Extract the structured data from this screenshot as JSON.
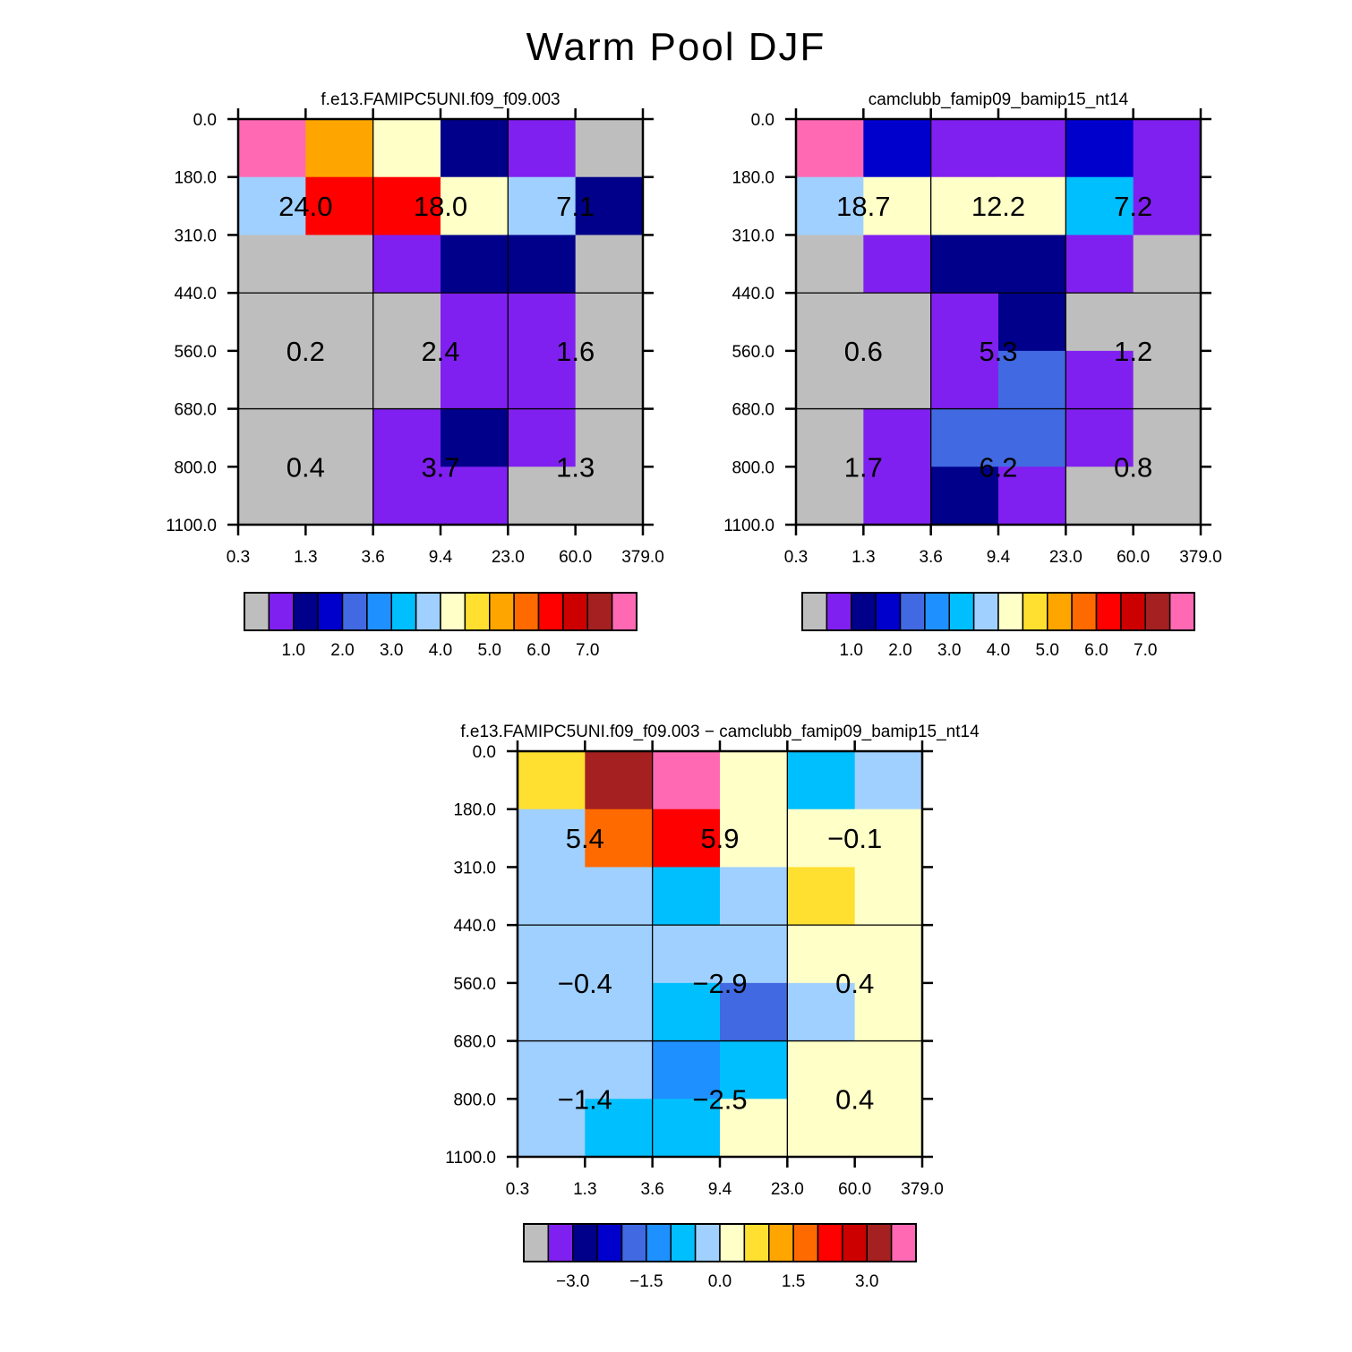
{
  "title": "Warm Pool DJF",
  "palette": {
    "gray": "#bebebe",
    "purple": "#8020f0",
    "navy": "#00008b",
    "mediumblue": "#0000cd",
    "royalblue": "#4169e1",
    "dodgerblue": "#1e90ff",
    "deepskyblue": "#00bfff",
    "lightskyblue": "#a0d0ff",
    "lightyellow": "#ffffc8",
    "gold": "#ffe030",
    "orange": "#ffa500",
    "darkorange": "#ff6a00",
    "red": "#ff0000",
    "darkred": "#cd0000",
    "brown": "#a52020",
    "pink": "#ff69b4"
  },
  "chart_data": [
    {
      "type": "heatmap",
      "title": "f.e13.FAMIPC5UNI.f09_f09.003",
      "x_tick_labels": [
        "0.3",
        "1.3",
        "3.6",
        "9.4",
        "23.0",
        "60.0",
        "379.0"
      ],
      "y_tick_labels": [
        "0.0",
        "180.0",
        "310.0",
        "440.0",
        "560.0",
        "680.0",
        "800.0",
        "1100.0"
      ],
      "cells": [
        [
          "pink",
          "orange",
          "lightyellow",
          "navy",
          "purple",
          "gray"
        ],
        [
          "lightskyblue",
          "red",
          "red",
          "lightyellow",
          "lightskyblue",
          "navy"
        ],
        [
          "gray",
          "gray",
          "purple",
          "navy",
          "navy",
          "gray"
        ],
        [
          "gray",
          "gray",
          "gray",
          "purple",
          "purple",
          "gray"
        ],
        [
          "gray",
          "gray",
          "gray",
          "purple",
          "purple",
          "gray"
        ],
        [
          "gray",
          "gray",
          "purple",
          "navy",
          "purple",
          "gray"
        ],
        [
          "gray",
          "gray",
          "purple",
          "purple",
          "gray",
          "gray"
        ]
      ],
      "annotations": [
        {
          "row": 0,
          "col": 0,
          "label": "24.0"
        },
        {
          "row": 0,
          "col": 1,
          "label": "18.0"
        },
        {
          "row": 0,
          "col": 2,
          "label": "7.1"
        },
        {
          "row": 1,
          "col": 0,
          "label": "0.2"
        },
        {
          "row": 1,
          "col": 1,
          "label": "2.4"
        },
        {
          "row": 1,
          "col": 2,
          "label": "1.6"
        },
        {
          "row": 2,
          "col": 0,
          "label": "0.4"
        },
        {
          "row": 2,
          "col": 1,
          "label": "3.7"
        },
        {
          "row": 2,
          "col": 2,
          "label": "1.3"
        }
      ],
      "colorbar": {
        "colors": [
          "gray",
          "purple",
          "navy",
          "mediumblue",
          "royalblue",
          "dodgerblue",
          "deepskyblue",
          "lightskyblue",
          "lightyellow",
          "gold",
          "orange",
          "darkorange",
          "red",
          "darkred",
          "brown",
          "pink"
        ],
        "labels": [
          "1.0",
          "2.0",
          "3.0",
          "4.0",
          "5.0",
          "6.0",
          "7.0"
        ],
        "label_boundaries": [
          2,
          4,
          6,
          8,
          10,
          12,
          14
        ]
      }
    },
    {
      "type": "heatmap",
      "title": "camclubb_famip09_bamip15_nt14",
      "x_tick_labels": [
        "0.3",
        "1.3",
        "3.6",
        "9.4",
        "23.0",
        "60.0",
        "379.0"
      ],
      "y_tick_labels": [
        "0.0",
        "180.0",
        "310.0",
        "440.0",
        "560.0",
        "680.0",
        "800.0",
        "1100.0"
      ],
      "cells": [
        [
          "pink",
          "mediumblue",
          "purple",
          "purple",
          "mediumblue",
          "purple"
        ],
        [
          "lightskyblue",
          "lightyellow",
          "lightyellow",
          "lightyellow",
          "deepskyblue",
          "purple"
        ],
        [
          "gray",
          "purple",
          "navy",
          "navy",
          "purple",
          "gray"
        ],
        [
          "gray",
          "gray",
          "purple",
          "navy",
          "gray",
          "gray"
        ],
        [
          "gray",
          "gray",
          "purple",
          "royalblue",
          "purple",
          "gray"
        ],
        [
          "gray",
          "purple",
          "royalblue",
          "royalblue",
          "purple",
          "gray"
        ],
        [
          "gray",
          "purple",
          "navy",
          "purple",
          "gray",
          "gray"
        ]
      ],
      "annotations": [
        {
          "row": 0,
          "col": 0,
          "label": "18.7"
        },
        {
          "row": 0,
          "col": 1,
          "label": "12.2"
        },
        {
          "row": 0,
          "col": 2,
          "label": "7.2"
        },
        {
          "row": 1,
          "col": 0,
          "label": "0.6"
        },
        {
          "row": 1,
          "col": 1,
          "label": "5.3"
        },
        {
          "row": 1,
          "col": 2,
          "label": "1.2"
        },
        {
          "row": 2,
          "col": 0,
          "label": "1.7"
        },
        {
          "row": 2,
          "col": 1,
          "label": "6.2"
        },
        {
          "row": 2,
          "col": 2,
          "label": "0.8"
        }
      ],
      "colorbar": {
        "colors": [
          "gray",
          "purple",
          "navy",
          "mediumblue",
          "royalblue",
          "dodgerblue",
          "deepskyblue",
          "lightskyblue",
          "lightyellow",
          "gold",
          "orange",
          "darkorange",
          "red",
          "darkred",
          "brown",
          "pink"
        ],
        "labels": [
          "1.0",
          "2.0",
          "3.0",
          "4.0",
          "5.0",
          "6.0",
          "7.0"
        ],
        "label_boundaries": [
          2,
          4,
          6,
          8,
          10,
          12,
          14
        ]
      }
    },
    {
      "type": "heatmap",
      "title": "f.e13.FAMIPC5UNI.f09_f09.003 − camclubb_famip09_bamip15_nt14",
      "x_tick_labels": [
        "0.3",
        "1.3",
        "3.6",
        "9.4",
        "23.0",
        "60.0",
        "379.0"
      ],
      "y_tick_labels": [
        "0.0",
        "180.0",
        "310.0",
        "440.0",
        "560.0",
        "680.0",
        "800.0",
        "1100.0"
      ],
      "cells": [
        [
          "gold",
          "brown",
          "pink",
          "lightyellow",
          "deepskyblue",
          "lightskyblue"
        ],
        [
          "lightskyblue",
          "darkorange",
          "red",
          "lightyellow",
          "lightyellow",
          "lightyellow"
        ],
        [
          "lightskyblue",
          "lightskyblue",
          "deepskyblue",
          "lightskyblue",
          "gold",
          "lightyellow"
        ],
        [
          "lightskyblue",
          "lightskyblue",
          "lightskyblue",
          "lightskyblue",
          "lightyellow",
          "lightyellow"
        ],
        [
          "lightskyblue",
          "lightskyblue",
          "deepskyblue",
          "royalblue",
          "lightskyblue",
          "lightyellow"
        ],
        [
          "lightskyblue",
          "lightskyblue",
          "dodgerblue",
          "deepskyblue",
          "lightyellow",
          "lightyellow"
        ],
        [
          "lightskyblue",
          "deepskyblue",
          "deepskyblue",
          "lightyellow",
          "lightyellow",
          "lightyellow"
        ]
      ],
      "annotations": [
        {
          "row": 0,
          "col": 0,
          "label": "5.4"
        },
        {
          "row": 0,
          "col": 1,
          "label": "5.9"
        },
        {
          "row": 0,
          "col": 2,
          "label": "−0.1"
        },
        {
          "row": 1,
          "col": 0,
          "label": "−0.4"
        },
        {
          "row": 1,
          "col": 1,
          "label": "−2.9"
        },
        {
          "row": 1,
          "col": 2,
          "label": "0.4"
        },
        {
          "row": 2,
          "col": 0,
          "label": "−1.4"
        },
        {
          "row": 2,
          "col": 1,
          "label": "−2.5"
        },
        {
          "row": 2,
          "col": 2,
          "label": "0.4"
        }
      ],
      "colorbar": {
        "colors": [
          "gray",
          "purple",
          "navy",
          "mediumblue",
          "royalblue",
          "dodgerblue",
          "deepskyblue",
          "lightskyblue",
          "lightyellow",
          "gold",
          "orange",
          "darkorange",
          "red",
          "darkred",
          "brown",
          "pink"
        ],
        "labels": [
          "−3.0",
          "−1.5",
          "0.0",
          "1.5",
          "3.0"
        ],
        "label_boundaries": [
          2,
          5,
          8,
          11,
          14
        ]
      }
    }
  ]
}
